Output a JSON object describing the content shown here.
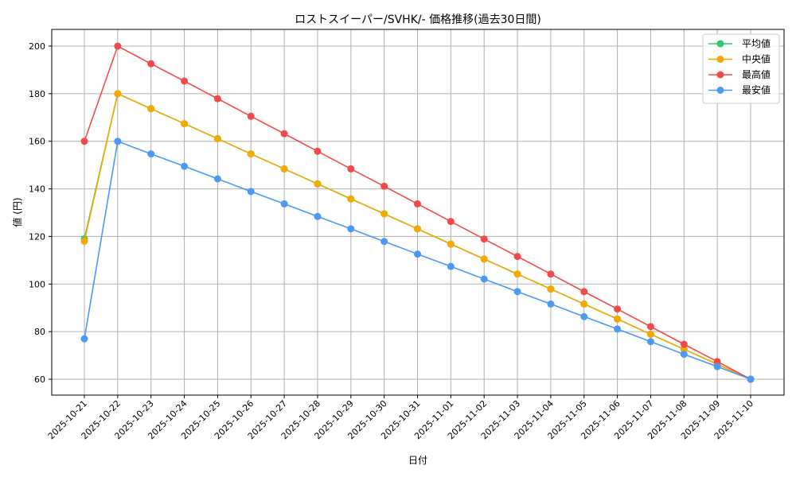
{
  "chart_data": {
    "type": "line",
    "title": "ロストスイーパー/SVHK/- 価格推移(過去30日間)",
    "xlabel": "日付",
    "ylabel": "値 (円)",
    "ylim": [
      53,
      207
    ],
    "yticks": [
      60,
      80,
      100,
      120,
      140,
      160,
      180,
      200
    ],
    "grid": true,
    "legend_position": "upper right",
    "categories": [
      "2025-10-21",
      "2025-10-22",
      "2025-10-23",
      "2025-10-24",
      "2025-10-25",
      "2025-10-26",
      "2025-10-27",
      "2025-10-28",
      "2025-10-29",
      "2025-10-30",
      "2025-10-31",
      "2025-11-01",
      "2025-11-02",
      "2025-11-03",
      "2025-11-04",
      "2025-11-05",
      "2025-11-06",
      "2025-11-07",
      "2025-11-08",
      "2025-11-09",
      "2025-11-10"
    ],
    "series": [
      {
        "name": "平均値",
        "color": "#2ecc71",
        "values": [
          119,
          180,
          173.7,
          167.4,
          161.1,
          154.7,
          148.4,
          142.1,
          135.8,
          129.5,
          123.2,
          116.8,
          110.5,
          104.2,
          97.9,
          91.6,
          85.3,
          78.9,
          72.6,
          66.3,
          60
        ]
      },
      {
        "name": "中央値",
        "color": "#f5a800",
        "values": [
          118,
          180,
          173.7,
          167.4,
          161.1,
          154.7,
          148.4,
          142.1,
          135.8,
          129.5,
          123.2,
          116.8,
          110.5,
          104.2,
          97.9,
          91.6,
          85.3,
          78.9,
          72.6,
          66.3,
          60
        ]
      },
      {
        "name": "最高値",
        "color": "#f24a4a",
        "values": [
          160,
          200,
          192.6,
          185.3,
          177.9,
          170.5,
          163.2,
          155.8,
          148.4,
          141.1,
          133.7,
          126.3,
          118.9,
          111.6,
          104.2,
          96.8,
          89.5,
          82.1,
          74.7,
          67.4,
          60
        ]
      },
      {
        "name": "最安値",
        "color": "#4a9af5",
        "values": [
          77,
          160,
          154.7,
          149.5,
          144.2,
          138.9,
          133.7,
          128.4,
          123.2,
          117.9,
          112.6,
          107.4,
          102.1,
          96.8,
          91.6,
          86.3,
          81.1,
          75.8,
          70.5,
          65.3,
          60
        ]
      }
    ]
  }
}
